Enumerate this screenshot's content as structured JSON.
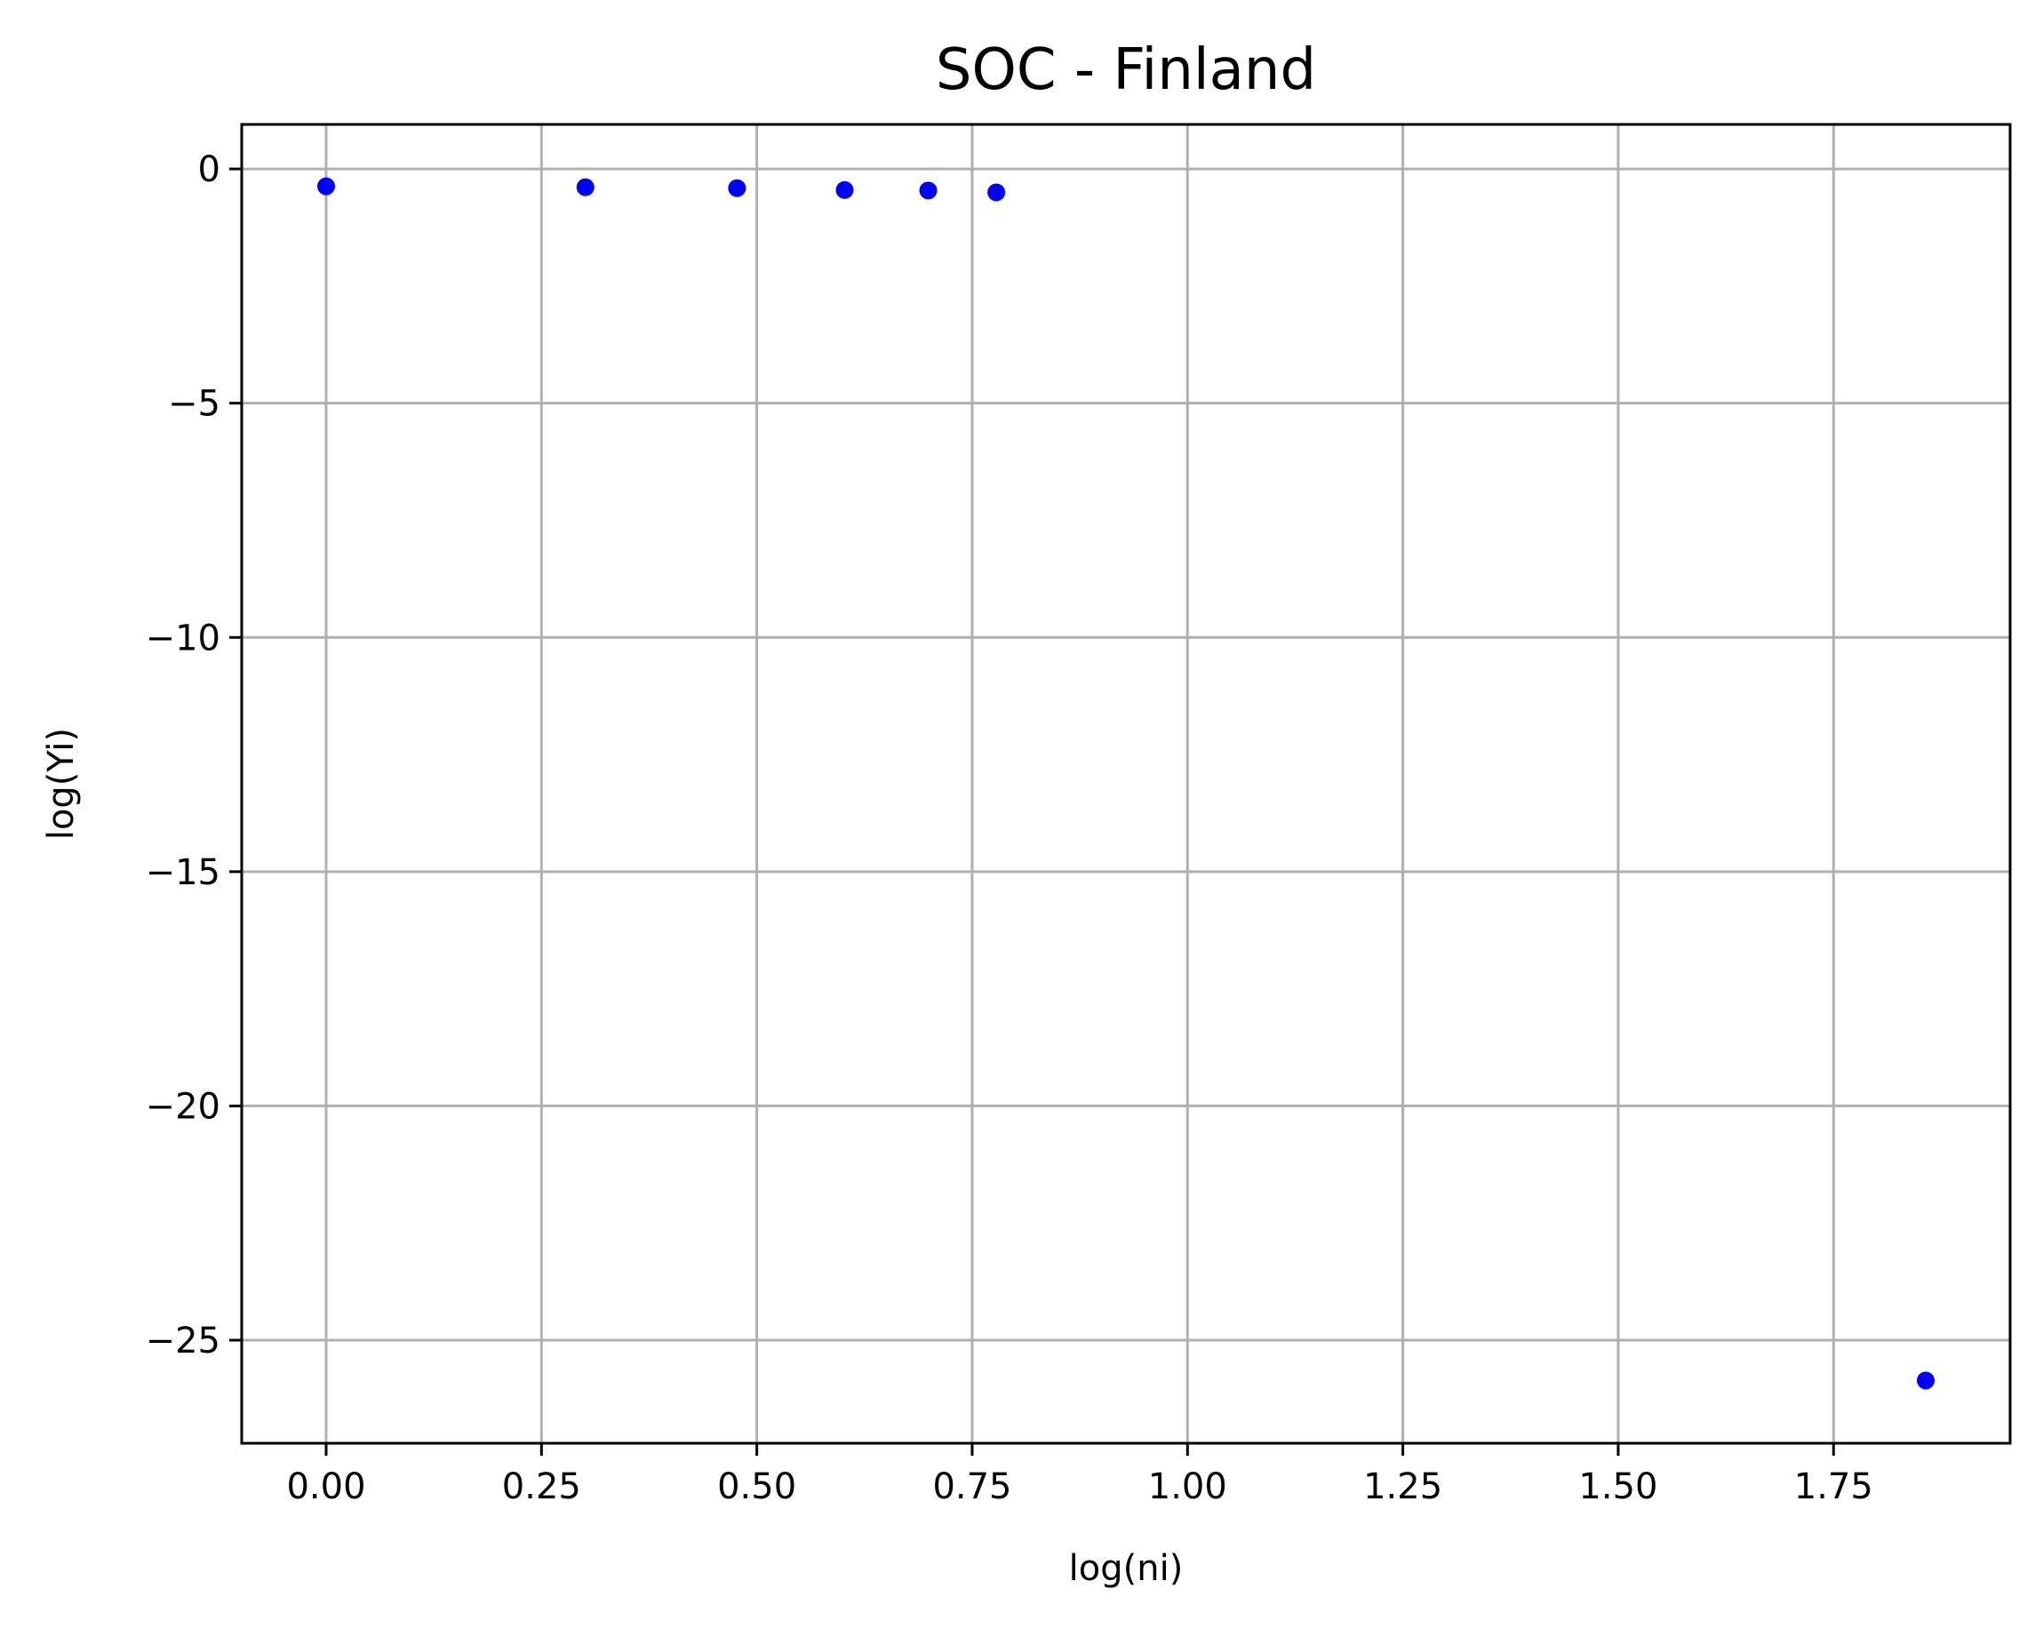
{
  "chart_data": {
    "type": "scatter",
    "title": "SOC - Finland",
    "xlabel": "log(ni)",
    "ylabel": "log(Yi)",
    "xlim": [
      -0.098,
      1.955
    ],
    "ylim": [
      -27.2,
      0.95
    ],
    "x_ticks": [
      0.0,
      0.25,
      0.5,
      0.75,
      1.0,
      1.25,
      1.5,
      1.75
    ],
    "x_tick_labels": [
      "0.00",
      "0.25",
      "0.50",
      "0.75",
      "1.00",
      "1.25",
      "1.50",
      "1.75"
    ],
    "y_ticks": [
      0,
      -5,
      -10,
      -15,
      -20,
      -25
    ],
    "y_tick_labels": [
      "0",
      "−5",
      "−10",
      "−15",
      "−20",
      "−25"
    ],
    "grid": true,
    "marker_color": "#0000ff",
    "series": [
      {
        "x": [
          0.0,
          0.301,
          0.477,
          0.602,
          0.699,
          0.778,
          1.857
        ],
        "y": [
          -0.37,
          -0.39,
          -0.41,
          -0.45,
          -0.46,
          -0.5,
          -25.86
        ]
      }
    ]
  }
}
